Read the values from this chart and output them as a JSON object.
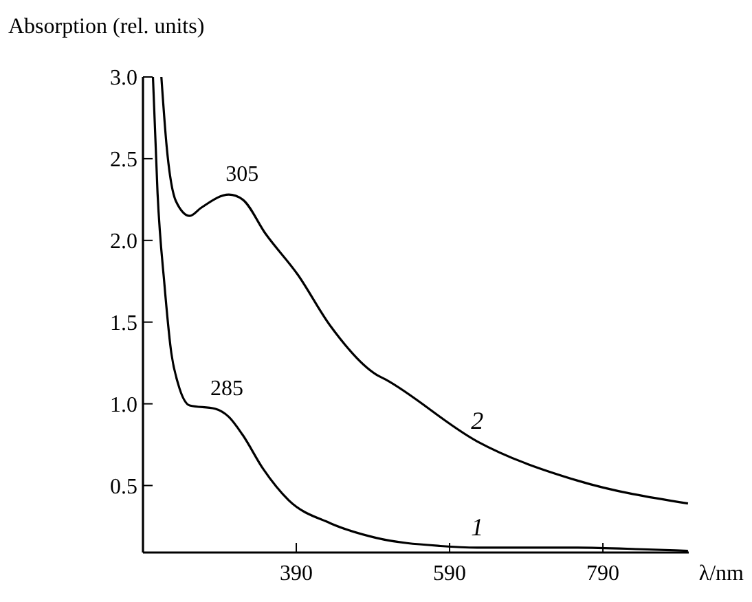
{
  "chart_data": {
    "type": "line",
    "ylabel": "Absorption (rel. units)",
    "xlabel": "λ/nm",
    "xlim": [
      190,
      902
    ],
    "ylim": [
      0.09,
      3.0
    ],
    "xticks": [
      390,
      590,
      790
    ],
    "yticks": [
      0.5,
      {
        "value": 1,
        "label": "1.0"
      },
      1.5,
      {
        "value": 2,
        "label": "2.0"
      },
      2.5,
      {
        "value": 3,
        "label": "3.0"
      }
    ],
    "grid": false,
    "marker": "none",
    "line_style": "solid",
    "series": [
      {
        "name": "1",
        "color": "#000000",
        "x": [
          203,
          209,
          218,
          227,
          236,
          251,
          284,
          302,
          320,
          347,
          380,
          434,
          494,
          578,
          626,
          757,
          841,
          901
        ],
        "values": [
          3.0,
          2.29,
          1.73,
          1.31,
          1.12,
          0.99,
          0.97,
          0.92,
          0.81,
          0.6,
          0.41,
          0.27,
          0.18,
          0.13,
          0.12,
          0.12,
          0.11,
          0.1
        ]
      },
      {
        "name": "2",
        "color": "#000000",
        "x": [
          214,
          221,
          233,
          251,
          266,
          302,
          320,
          350,
          392,
          434,
          494,
          506,
          626,
          757,
          901
        ],
        "values": [
          3.0,
          2.57,
          2.24,
          2.15,
          2.2,
          2.28,
          2.25,
          2.04,
          1.79,
          1.48,
          1.18,
          1.15,
          0.77,
          0.53,
          0.39
        ]
      }
    ],
    "annotations": [
      {
        "text": "305",
        "x": 305,
        "y": 2.28
      },
      {
        "text": "285",
        "x": 285,
        "y": 0.97
      }
    ]
  }
}
